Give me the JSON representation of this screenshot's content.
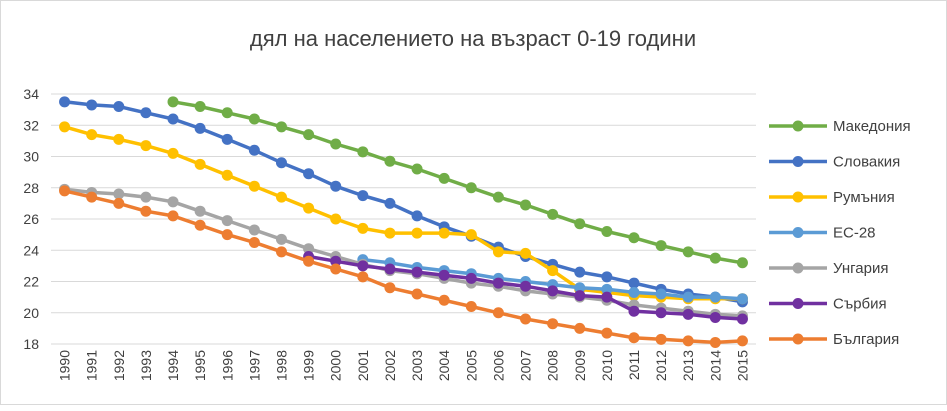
{
  "chart_data": {
    "type": "line",
    "title": "дял на населението на възраст 0-19 години",
    "xlabel": "",
    "ylabel": "",
    "ylim": [
      18,
      34
    ],
    "yticks": [
      18,
      20,
      22,
      24,
      26,
      28,
      30,
      32,
      34
    ],
    "grid": true,
    "legend_position": "right",
    "x": [
      1990,
      1991,
      1992,
      1993,
      1994,
      1995,
      1996,
      1997,
      1998,
      1999,
      2000,
      2001,
      2002,
      2003,
      2004,
      2005,
      2006,
      2007,
      2008,
      2009,
      2010,
      2011,
      2012,
      2013,
      2014,
      2015
    ],
    "series": [
      {
        "name": "Македония",
        "color": "#70ad47",
        "values": [
          null,
          null,
          null,
          null,
          33.5,
          33.2,
          32.8,
          32.4,
          31.9,
          31.4,
          30.8,
          30.3,
          29.7,
          29.2,
          28.6,
          28.0,
          27.4,
          26.9,
          26.3,
          25.7,
          25.2,
          24.8,
          24.3,
          23.9,
          23.5,
          23.2
        ]
      },
      {
        "name": "Словакия",
        "color": "#4472c4",
        "values": [
          33.5,
          33.3,
          33.2,
          32.8,
          32.4,
          31.8,
          31.1,
          30.4,
          29.6,
          28.9,
          28.1,
          27.5,
          27.0,
          26.2,
          25.5,
          24.9,
          24.2,
          23.6,
          23.1,
          22.6,
          22.3,
          21.9,
          21.5,
          21.2,
          21.0,
          20.7
        ]
      },
      {
        "name": "Румъния",
        "color": "#ffc000",
        "values": [
          31.9,
          31.4,
          31.1,
          30.7,
          30.2,
          29.5,
          28.8,
          28.1,
          27.4,
          26.7,
          26.0,
          25.4,
          25.1,
          25.1,
          25.1,
          25.0,
          23.9,
          23.8,
          22.7,
          21.5,
          21.3,
          21.1,
          21.0,
          20.9,
          20.9,
          20.9
        ]
      },
      {
        "name": "ЕС-28",
        "color": "#5b9bd5",
        "values": [
          null,
          null,
          null,
          null,
          null,
          null,
          null,
          null,
          null,
          null,
          null,
          23.4,
          23.2,
          22.9,
          22.7,
          22.5,
          22.2,
          22.0,
          21.8,
          21.6,
          21.5,
          21.3,
          21.2,
          21.0,
          21.0,
          20.9
        ]
      },
      {
        "name": "Унгария",
        "color": "#a5a5a5",
        "values": [
          27.9,
          27.7,
          27.6,
          27.4,
          27.1,
          26.5,
          25.9,
          25.3,
          24.7,
          24.1,
          23.6,
          23.1,
          22.7,
          22.5,
          22.2,
          21.9,
          21.7,
          21.4,
          21.2,
          21.0,
          20.8,
          20.5,
          20.3,
          20.1,
          19.9,
          19.8
        ]
      },
      {
        "name": "Сърбия",
        "color": "#7030a0",
        "values": [
          null,
          null,
          null,
          null,
          null,
          null,
          null,
          null,
          null,
          23.6,
          23.3,
          23.0,
          22.8,
          22.6,
          22.4,
          22.2,
          21.9,
          21.7,
          21.4,
          21.1,
          21.0,
          20.1,
          20.0,
          19.9,
          19.7,
          19.6
        ]
      },
      {
        "name": "България",
        "color": "#ed7d31",
        "values": [
          27.8,
          27.4,
          27.0,
          26.5,
          26.2,
          25.6,
          25.0,
          24.5,
          23.9,
          23.3,
          22.8,
          22.3,
          21.6,
          21.2,
          20.8,
          20.4,
          20.0,
          19.6,
          19.3,
          19.0,
          18.7,
          18.4,
          18.3,
          18.2,
          18.1,
          18.2
        ]
      }
    ]
  }
}
